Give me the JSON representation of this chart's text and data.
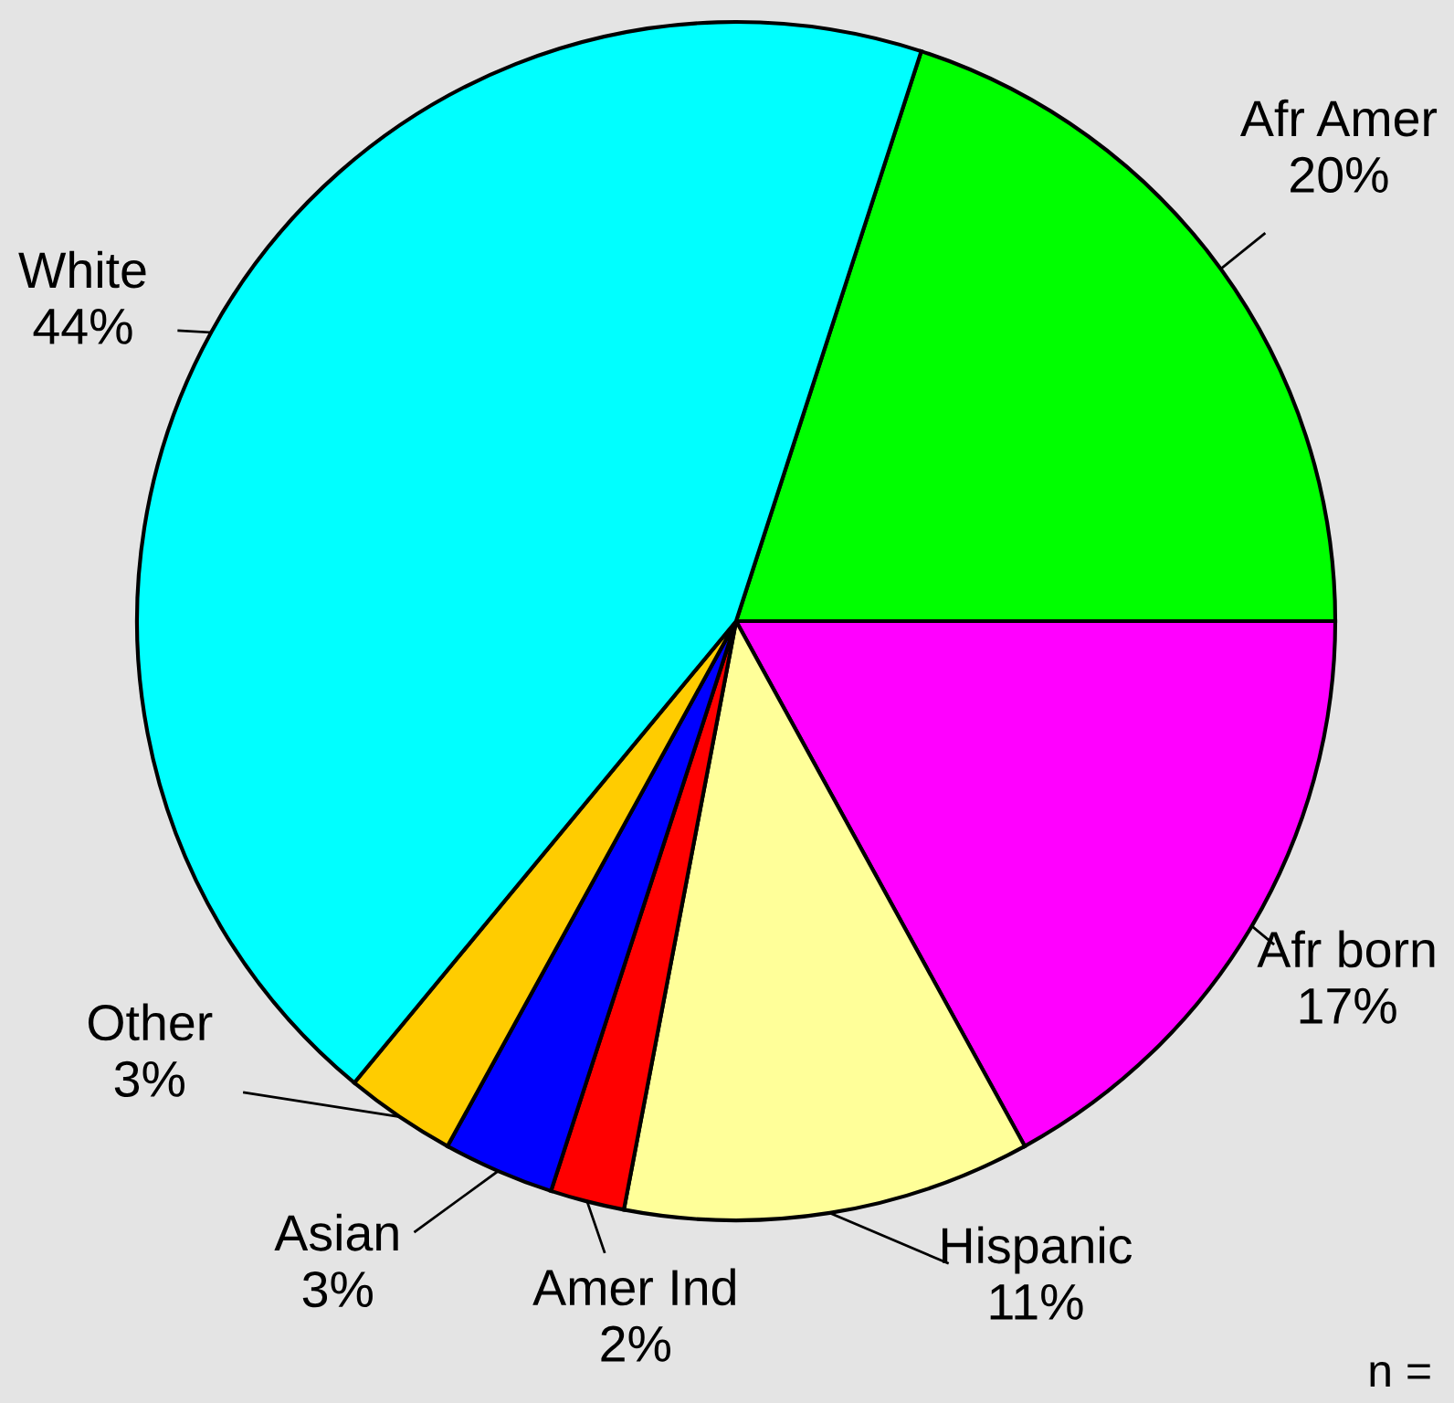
{
  "chart_data": {
    "type": "pie",
    "categories": [
      "Afr Amer",
      "Afr born",
      "Hispanic",
      "Amer Ind",
      "Asian",
      "Other",
      "White"
    ],
    "values": [
      20,
      17,
      11,
      2,
      3,
      3,
      44
    ],
    "value_labels": [
      "20%",
      "17%",
      "11%",
      "2%",
      "3%",
      "3%",
      "44%"
    ],
    "colors": [
      "#00ff00",
      "#ff00ff",
      "#ffff99",
      "#ff0000",
      "#0000ff",
      "#ffcc00",
      "#00ffff"
    ],
    "annotations": [
      "n ="
    ]
  }
}
